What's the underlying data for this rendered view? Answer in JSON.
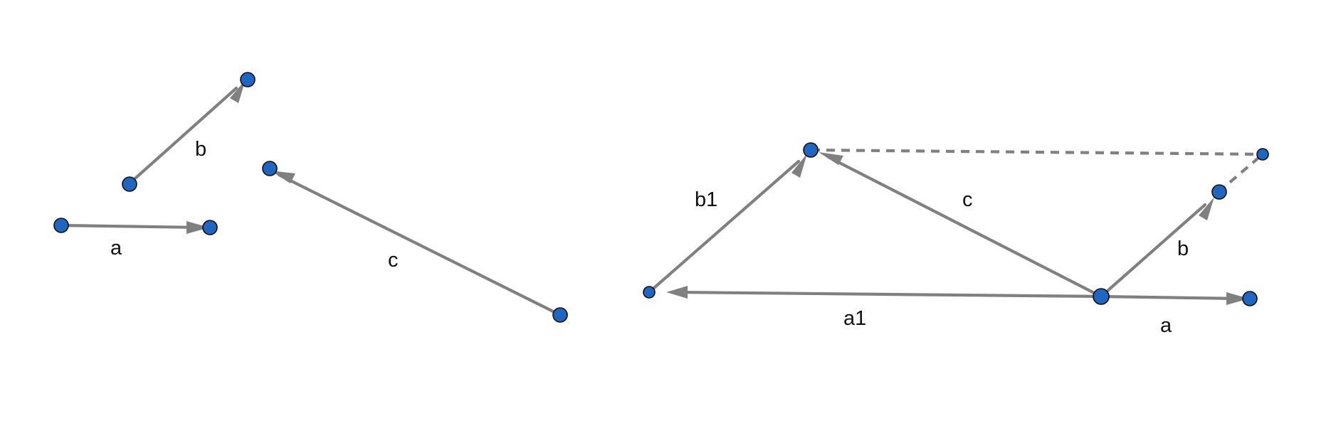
{
  "labels": {
    "left_a": "a",
    "left_b": "b",
    "left_c": "c",
    "right_b1": "b1",
    "right_c": "c",
    "right_b": "b",
    "right_a1": "a1",
    "right_a": "a"
  },
  "colors": {
    "vector": "#808080",
    "point_fill": "#1f66c2",
    "point_stroke": "#0d0d0d",
    "background": "#ffffff"
  }
}
